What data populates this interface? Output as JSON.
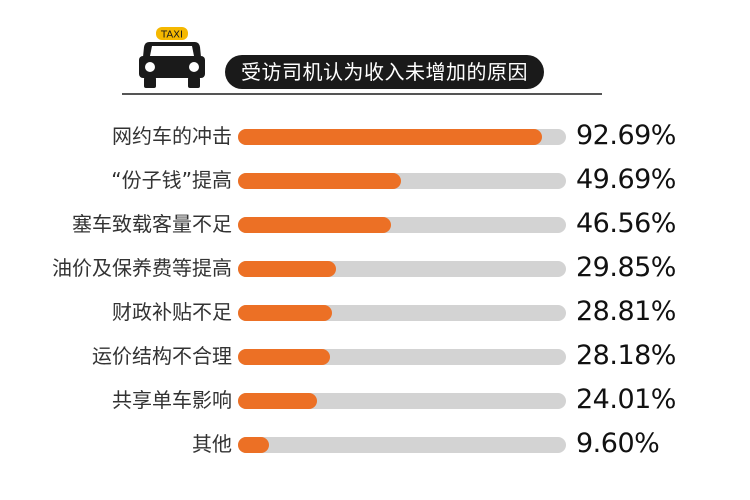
{
  "header": {
    "badge_text": "TAXI",
    "title": "受访司机认为收入未增加的原因",
    "icon": "taxi-icon"
  },
  "colors": {
    "bar_fill": "#ec7025",
    "bar_track": "#d3d3d3",
    "title_bg": "#1a1a1a",
    "badge": "#f5b800"
  },
  "chart_data": {
    "type": "bar",
    "orientation": "horizontal",
    "title": "受访司机认为收入未增加的原因",
    "categories": [
      "网约车的冲击",
      "“份子钱”提高",
      "塞车致载客量不足",
      "油价及保养费等提高",
      "财政补贴不足",
      "运价结构不合理",
      "共享单车影响",
      "其他"
    ],
    "values": [
      92.69,
      49.69,
      46.56,
      29.85,
      28.81,
      28.18,
      24.01,
      9.6
    ],
    "value_labels": [
      "92.69%",
      "49.69%",
      "46.56%",
      "29.85%",
      "28.81%",
      "28.18%",
      "24.01%",
      "9.60%"
    ],
    "xlabel": "",
    "ylabel": "",
    "xlim": [
      0,
      100
    ],
    "grid": false,
    "legend": "none"
  }
}
